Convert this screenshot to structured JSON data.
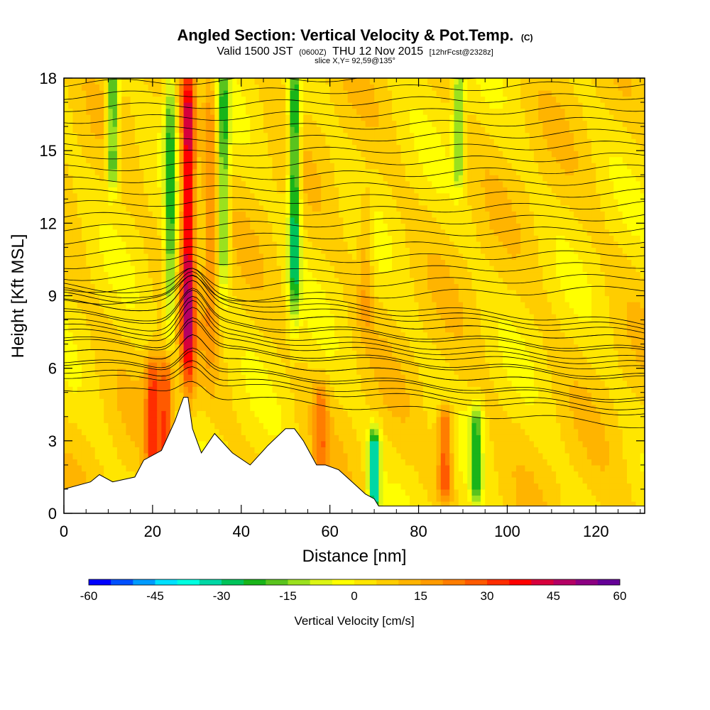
{
  "header": {
    "title_main": "Angled Section: Vertical Velocity & Pot.Temp.",
    "title_unit": "(C)",
    "valid_prefix": "Valid 1500 JST",
    "valid_utc": "(0600Z)",
    "valid_date": "THU 12 Nov 2015",
    "forecast_tag": "[12hrFcst@2328z]",
    "slice_label": "slice X,Y= 92,59@135°"
  },
  "chart_data": {
    "type": "heatmap",
    "title": "Angled Section: Vertical Velocity & Pot.Temp. (C)",
    "xlabel": "Distance [nm]",
    "ylabel": "Height [Kft MSL]",
    "xlim": [
      0,
      131
    ],
    "ylim": [
      0,
      18
    ],
    "x_ticks": [
      "0",
      "20",
      "40",
      "60",
      "80",
      "100",
      "120"
    ],
    "x_tick_values": [
      0,
      20,
      40,
      60,
      80,
      100,
      120
    ],
    "y_ticks": [
      "0",
      "3",
      "6",
      "9",
      "12",
      "15",
      "18"
    ],
    "y_tick_values": [
      0,
      3,
      6,
      9,
      12,
      15,
      18
    ],
    "grid": false,
    "fill_variable": "Vertical Velocity [cm/s]",
    "contour_variable": "Potential Temperature (C)",
    "colorbar": {
      "label": "Vertical Velocity [cm/s]",
      "ticks": [
        "-60",
        "-45",
        "-30",
        "-15",
        "0",
        "15",
        "30",
        "45",
        "60"
      ],
      "tick_values": [
        -60,
        -45,
        -30,
        -15,
        0,
        15,
        30,
        45,
        60
      ],
      "colors": [
        "#0000ff",
        "#0050ff",
        "#009bff",
        "#00e1ff",
        "#00ffe1",
        "#00d7a5",
        "#00c35a",
        "#19b419",
        "#5ac31e",
        "#9be11e",
        "#dcf514",
        "#ffff00",
        "#ffe600",
        "#ffcd00",
        "#ffb400",
        "#ff9b00",
        "#ff7d00",
        "#ff5a00",
        "#ff2d00",
        "#ff0000",
        "#d7003c",
        "#b40064",
        "#8c0082",
        "#640096"
      ]
    },
    "updraft_columns": [
      {
        "x": 28,
        "y_range": [
          6,
          18
        ],
        "max": 45
      },
      {
        "x": 20,
        "y_range": [
          2,
          6
        ],
        "max": 30
      },
      {
        "x": 23,
        "y_range": [
          2,
          6
        ],
        "max": 30
      },
      {
        "x": 86,
        "y_range": [
          1,
          4
        ],
        "max": 30
      },
      {
        "x": 58,
        "y_range": [
          2,
          5
        ],
        "max": 20
      },
      {
        "x": 33,
        "y_range": [
          7,
          18
        ],
        "max": 20
      },
      {
        "x": 68,
        "y_range": [
          8,
          13
        ],
        "max": 15
      }
    ],
    "downdraft_columns": [
      {
        "x": 52,
        "y_range": [
          9,
          18
        ],
        "min": -30
      },
      {
        "x": 70,
        "y_range": [
          0.5,
          3
        ],
        "min": -35
      },
      {
        "x": 11,
        "y_range": [
          14,
          18
        ],
        "min": -25
      },
      {
        "x": 24,
        "y_range": [
          8,
          18
        ],
        "min": -20
      },
      {
        "x": 36,
        "y_range": [
          10,
          18
        ],
        "min": -20
      },
      {
        "x": 93,
        "y_range": [
          1,
          4
        ],
        "min": -20
      },
      {
        "x": 89,
        "y_range": [
          14,
          18
        ],
        "min": -15
      }
    ],
    "terrain_kft": {
      "x": [
        0,
        6,
        8,
        11,
        16,
        18,
        22,
        25,
        27,
        28,
        29,
        30,
        31,
        34,
        38,
        42,
        46,
        50,
        52,
        54,
        57,
        59,
        62,
        65,
        68,
        70,
        71,
        131
      ],
      "y": [
        1.0,
        1.3,
        1.6,
        1.3,
        1.5,
        2.2,
        2.6,
        3.8,
        4.8,
        4.8,
        3.5,
        3.0,
        2.5,
        3.3,
        2.5,
        2.0,
        2.8,
        3.5,
        3.5,
        3.0,
        2.0,
        2.0,
        1.8,
        1.3,
        0.8,
        0.6,
        0.3,
        0.3
      ]
    }
  }
}
